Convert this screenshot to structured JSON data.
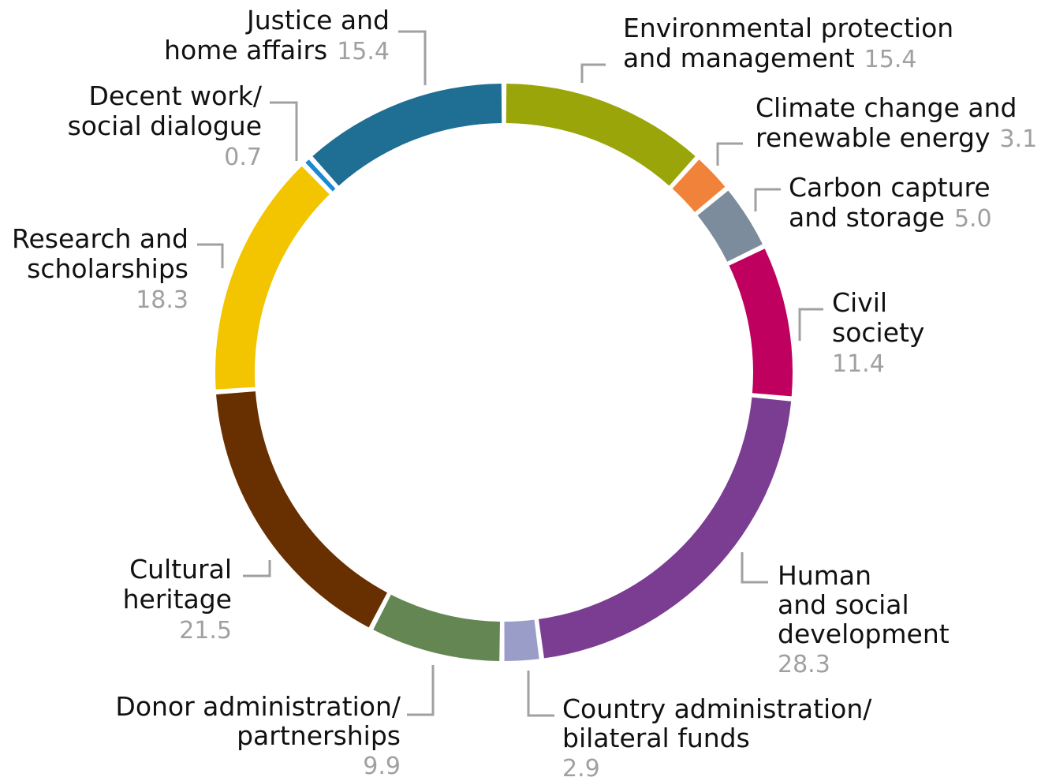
{
  "chart_data": {
    "type": "pie",
    "variant": "donut",
    "categories": [
      "Environmental protection and management",
      "Climate change and renewable energy",
      "Carbon capture and storage",
      "Civil society",
      "Human and social development",
      "Country administration/ bilateral funds",
      "Donor administration/ partnerships",
      "Cultural heritage",
      "Research and scholarships",
      "Decent work/ social dialogue",
      "Justice and home affairs"
    ],
    "values": [
      15.4,
      3.1,
      5.0,
      11.4,
      28.3,
      2.9,
      9.9,
      21.5,
      18.3,
      0.7,
      15.4
    ],
    "colors": [
      "#9aa50a",
      "#f08339",
      "#7c8c9c",
      "#c0005e",
      "#7a3d91",
      "#9b9dc9",
      "#648653",
      "#683000",
      "#f2c500",
      "#1c8ad0",
      "#1f6e93"
    ],
    "label_lines": [
      [
        "Environmental protection",
        "and management"
      ],
      [
        "Climate change and",
        "renewable energy"
      ],
      [
        "Carbon capture",
        "and storage"
      ],
      [
        "Civil",
        "society"
      ],
      [
        "Human",
        "and social",
        "development"
      ],
      [
        "Country administration/",
        "bilateral funds"
      ],
      [
        "Donor administration/",
        "partnerships"
      ],
      [
        "Cultural",
        "heritage"
      ],
      [
        "Research and",
        "scholarships"
      ],
      [
        "Decent work/",
        "social dialogue"
      ],
      [
        "Justice and",
        "home affairs"
      ]
    ],
    "value_labels": [
      "15.4",
      "3.1",
      "5.0",
      "11.4",
      "28.3",
      "2.9",
      "9.9",
      "21.5",
      "18.3",
      "0.7",
      "15.4"
    ],
    "legend": "none"
  }
}
